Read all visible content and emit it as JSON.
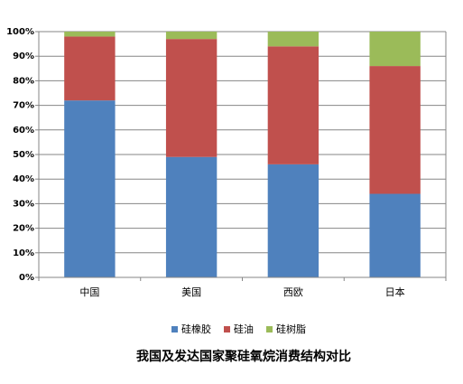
{
  "chart_data": {
    "type": "stacked_bar",
    "title": "我国及发达国家聚硅氧烷消费结构对比",
    "categories": [
      "中国",
      "美国",
      "西欧",
      "日本"
    ],
    "series": [
      {
        "name": "硅橡胶",
        "color": "#4f81bd",
        "values": [
          72,
          49,
          46,
          34
        ]
      },
      {
        "name": "硅油",
        "color": "#c0504d",
        "values": [
          26,
          48,
          48,
          52
        ]
      },
      {
        "name": "硅树脂",
        "color": "#9bbb59",
        "values": [
          2,
          3,
          6,
          14
        ]
      }
    ],
    "ylim": [
      0,
      100
    ],
    "yticks": [
      {
        "value": 0,
        "label": "0%"
      },
      {
        "value": 10,
        "label": "10%"
      },
      {
        "value": 20,
        "label": "20%"
      },
      {
        "value": 30,
        "label": "30%"
      },
      {
        "value": 40,
        "label": "40%"
      },
      {
        "value": 50,
        "label": "50%"
      },
      {
        "value": 60,
        "label": "60%"
      },
      {
        "value": 70,
        "label": "70%"
      },
      {
        "value": 80,
        "label": "80%"
      },
      {
        "value": 90,
        "label": "90%"
      },
      {
        "value": 100,
        "label": "100%"
      }
    ],
    "grid": true,
    "legend": "bottom"
  }
}
